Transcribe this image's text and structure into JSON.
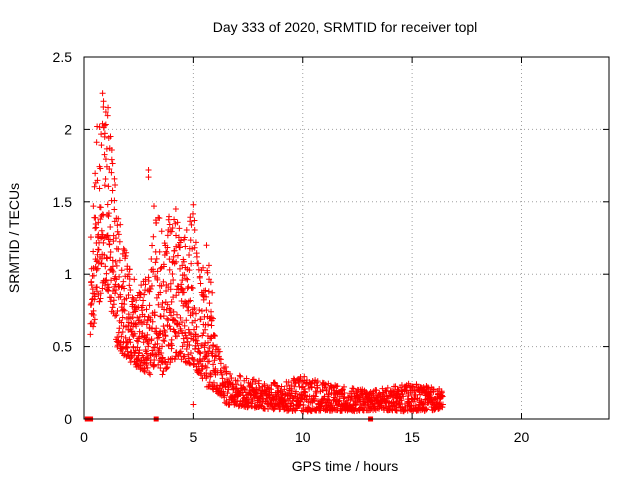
{
  "chart_data": {
    "type": "scatter",
    "title": "Day 333 of 2020, SRMTID for receiver topl",
    "xlabel": "GPS time / hours",
    "ylabel": "SRMTID / TECUs",
    "xlim": [
      0,
      24
    ],
    "ylim": [
      0,
      2.5
    ],
    "x_ticks": [
      0,
      5,
      10,
      15,
      20
    ],
    "y_ticks": [
      0,
      0.5,
      1,
      1.5,
      2,
      2.5
    ],
    "x_tick_labels": [
      "0",
      "5",
      "10",
      "15",
      "20"
    ],
    "y_tick_labels": [
      "0",
      "0.5",
      "1",
      "1.5",
      "2",
      "2.5"
    ],
    "grid": true,
    "marker": "+",
    "color": "#ff0000",
    "series": [
      {
        "name": "SRMTID",
        "envelope": [
          {
            "x": 0.3,
            "low": 0.55,
            "high": 1.25
          },
          {
            "x": 0.6,
            "low": 0.75,
            "high": 2.0
          },
          {
            "x": 0.9,
            "low": 0.9,
            "high": 2.25
          },
          {
            "x": 1.2,
            "low": 0.8,
            "high": 2.1
          },
          {
            "x": 1.5,
            "low": 0.5,
            "high": 1.5
          },
          {
            "x": 2.0,
            "low": 0.4,
            "high": 1.1
          },
          {
            "x": 2.5,
            "low": 0.35,
            "high": 0.95
          },
          {
            "x": 3.0,
            "low": 0.3,
            "high": 1.0
          },
          {
            "x": 3.3,
            "low": 0.4,
            "high": 1.5
          },
          {
            "x": 3.6,
            "low": 0.3,
            "high": 1.3
          },
          {
            "x": 4.0,
            "low": 0.4,
            "high": 1.45
          },
          {
            "x": 4.5,
            "low": 0.4,
            "high": 1.3
          },
          {
            "x": 5.0,
            "low": 0.35,
            "high": 1.45
          },
          {
            "x": 5.3,
            "low": 0.3,
            "high": 1.0
          },
          {
            "x": 5.7,
            "low": 0.2,
            "high": 1.2
          },
          {
            "x": 6.0,
            "low": 0.2,
            "high": 0.6
          },
          {
            "x": 6.5,
            "low": 0.1,
            "high": 0.35
          },
          {
            "x": 7.5,
            "low": 0.08,
            "high": 0.28
          },
          {
            "x": 9.0,
            "low": 0.06,
            "high": 0.25
          },
          {
            "x": 10.0,
            "low": 0.05,
            "high": 0.3
          },
          {
            "x": 11.0,
            "low": 0.06,
            "high": 0.25
          },
          {
            "x": 12.0,
            "low": 0.05,
            "high": 0.22
          },
          {
            "x": 13.0,
            "low": 0.06,
            "high": 0.2
          },
          {
            "x": 14.0,
            "low": 0.06,
            "high": 0.22
          },
          {
            "x": 15.0,
            "low": 0.05,
            "high": 0.25
          },
          {
            "x": 16.0,
            "low": 0.06,
            "high": 0.22
          },
          {
            "x": 16.4,
            "low": 0.08,
            "high": 0.2
          }
        ],
        "highlights": [
          {
            "x": 0.85,
            "y": 2.25
          },
          {
            "x": 1.0,
            "y": 2.12
          },
          {
            "x": 1.1,
            "y": 2.15
          },
          {
            "x": 0.6,
            "y": 2.02
          },
          {
            "x": 2.95,
            "y": 1.72
          },
          {
            "x": 2.95,
            "y": 1.67
          },
          {
            "x": 3.2,
            "y": 1.47
          },
          {
            "x": 5.0,
            "y": 1.48
          },
          {
            "x": 5.6,
            "y": 1.2
          },
          {
            "x": 5.0,
            "y": 0.1
          },
          {
            "x": 4.2,
            "y": 1.45
          },
          {
            "x": 9.9,
            "y": 0.29
          },
          {
            "x": 15.2,
            "y": 0.24
          }
        ],
        "baseline_points": [
          {
            "x": 0.15,
            "y": 0.0
          },
          {
            "x": 0.25,
            "y": 0.0
          },
          {
            "x": 0.3,
            "y": 0.0
          },
          {
            "x": 3.3,
            "y": 0.0
          },
          {
            "x": 13.1,
            "y": 0.0
          }
        ]
      }
    ]
  }
}
